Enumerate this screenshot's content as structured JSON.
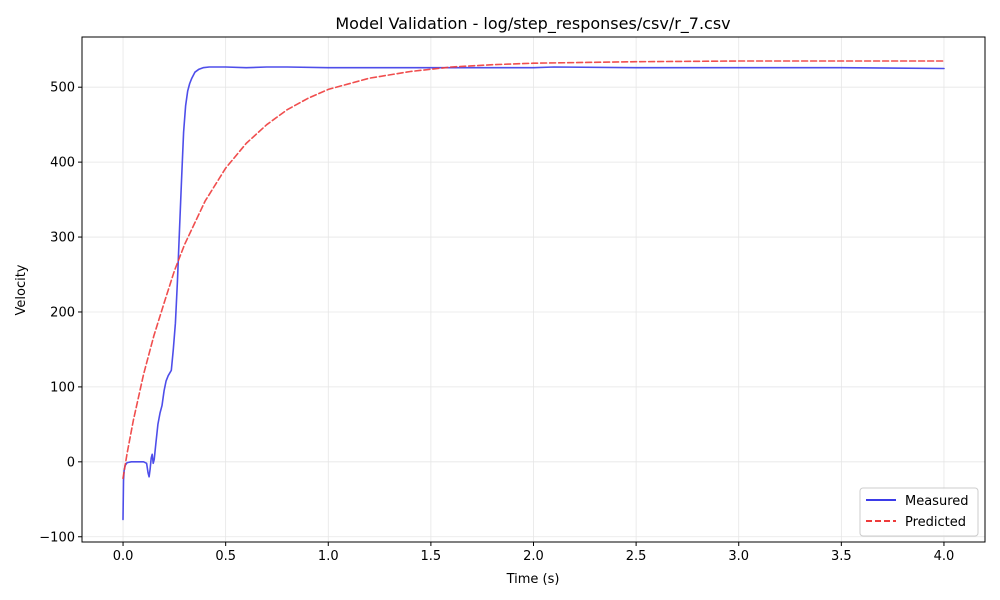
{
  "chart_data": {
    "type": "line",
    "title": "Model Validation - log/step_responses/csv/r_7.csv",
    "xlabel": "Time (s)",
    "ylabel": "Velocity",
    "xlim": [
      -0.2,
      4.2
    ],
    "ylim": [
      -107,
      567
    ],
    "xticks": [
      0.0,
      0.5,
      1.0,
      1.5,
      2.0,
      2.5,
      3.0,
      3.5,
      4.0
    ],
    "xtick_labels": [
      "0.0",
      "0.5",
      "1.0",
      "1.5",
      "2.0",
      "2.5",
      "3.0",
      "3.5",
      "4.0"
    ],
    "yticks": [
      -100,
      0,
      100,
      200,
      300,
      400,
      500
    ],
    "ytick_labels": [
      "−100",
      "0",
      "100",
      "200",
      "300",
      "400",
      "500"
    ],
    "grid": true,
    "legend_position": "bottom-right",
    "series": [
      {
        "name": "Measured",
        "color": "#3b3be8",
        "style": "solid",
        "x": [
          0.0,
          0.002,
          0.005,
          0.01,
          0.02,
          0.04,
          0.07,
          0.1,
          0.115,
          0.122,
          0.127,
          0.132,
          0.137,
          0.142,
          0.147,
          0.152,
          0.16,
          0.17,
          0.18,
          0.19,
          0.2,
          0.21,
          0.22,
          0.235,
          0.245,
          0.255,
          0.265,
          0.275,
          0.285,
          0.295,
          0.305,
          0.315,
          0.325,
          0.335,
          0.35,
          0.37,
          0.39,
          0.42,
          0.45,
          0.5,
          0.6,
          0.7,
          0.8,
          1.0,
          1.2,
          1.5,
          2.0,
          2.1,
          2.5,
          3.0,
          3.5,
          4.0
        ],
        "y": [
          -77,
          -25,
          -12,
          -5,
          -1,
          0,
          0,
          0,
          -2,
          -15,
          -20,
          -10,
          5,
          10,
          -2,
          3,
          25,
          50,
          65,
          75,
          95,
          108,
          115,
          122,
          150,
          185,
          240,
          310,
          375,
          440,
          475,
          495,
          505,
          512,
          520,
          524,
          526,
          527,
          527,
          527,
          526,
          527,
          527,
          526,
          526,
          526,
          526,
          527,
          526,
          526,
          526,
          525
        ]
      },
      {
        "name": "Predicted",
        "color": "#ee3b3b",
        "style": "dashed",
        "x": [
          0.0,
          0.02,
          0.05,
          0.1,
          0.15,
          0.2,
          0.25,
          0.3,
          0.4,
          0.5,
          0.6,
          0.7,
          0.8,
          0.9,
          1.0,
          1.2,
          1.4,
          1.6,
          1.8,
          2.0,
          2.5,
          3.0,
          3.5,
          4.0
        ],
        "y": [
          -22,
          12,
          55,
          117,
          168,
          212,
          255,
          290,
          348,
          392,
          425,
          450,
          470,
          485,
          497,
          512,
          521,
          527,
          530,
          532,
          534,
          535,
          535,
          535
        ]
      }
    ]
  }
}
